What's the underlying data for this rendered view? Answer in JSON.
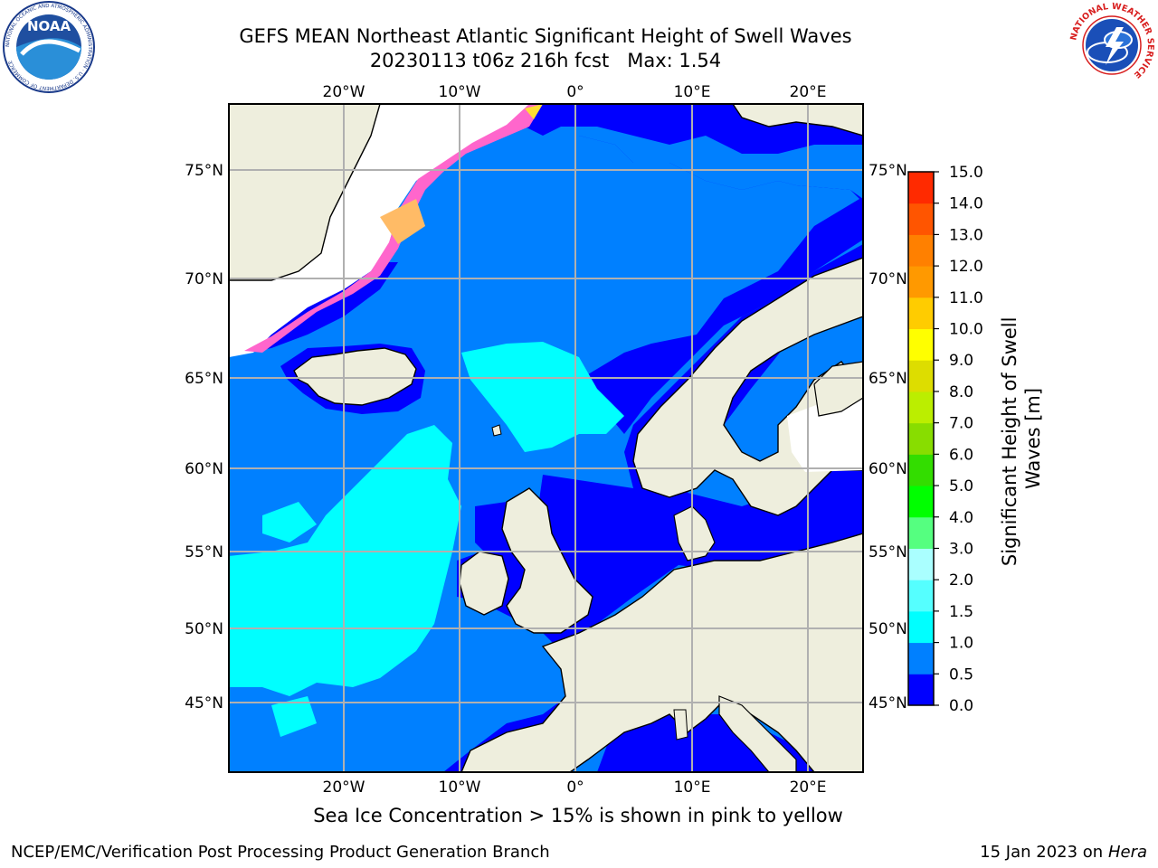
{
  "title": {
    "line1": "GEFS MEAN Northeast Atlantic Significant Height of Swell Waves",
    "line2": "20230113 t06z 216h fcst   Max: 1.54"
  },
  "map": {
    "projection_extent": {
      "lon": [
        -30,
        25
      ],
      "lat": [
        40,
        79
      ]
    },
    "lon_ticks": [
      {
        "value": -20,
        "label": "20°W"
      },
      {
        "value": -10,
        "label": "10°W"
      },
      {
        "value": 0,
        "label": "0°"
      },
      {
        "value": 10,
        "label": "10°E"
      },
      {
        "value": 20,
        "label": "20°E"
      }
    ],
    "lat_ticks": [
      {
        "value": 75,
        "label": "75°N"
      },
      {
        "value": 70,
        "label": "70°N"
      },
      {
        "value": 65,
        "label": "65°N"
      },
      {
        "value": 60,
        "label": "60°N"
      },
      {
        "value": 55,
        "label": "55°N"
      },
      {
        "value": 50,
        "label": "50°N"
      },
      {
        "value": 45,
        "label": "45°N"
      }
    ],
    "colors": {
      "ocean_0_05": "#0000ff",
      "ocean_05_1": "#0080ff",
      "ocean_1_15": "#00ffff",
      "land": "#eeeedd",
      "ice": "#ffffff",
      "ice_edge_pink": "#ff66cc",
      "ice_edge_yellow": "#ffdd33",
      "grid": "#b0b0b0"
    }
  },
  "colorbar": {
    "label": "Significant Height of Swell Waves [m]",
    "levels": [
      "0.0",
      "0.5",
      "1.0",
      "1.5",
      "2.0",
      "3.0",
      "4.0",
      "5.0",
      "6.0",
      "7.0",
      "8.0",
      "9.0",
      "10.0",
      "11.0",
      "12.0",
      "13.0",
      "14.0",
      "15.0"
    ],
    "colors": [
      "#0000ff",
      "#0080ff",
      "#00ffff",
      "#55ffff",
      "#aaffff",
      "#55ff80",
      "#00ff00",
      "#33dd00",
      "#88dd00",
      "#bbee00",
      "#dddd00",
      "#ffff00",
      "#ffcc00",
      "#ff9900",
      "#ff8000",
      "#ff5500",
      "#ff2a00"
    ]
  },
  "ice_note": "Sea Ice Concentration > 15% is shown in pink to yellow",
  "footer": {
    "left": "NCEP/EMC/Verification Post Processing Product Generation Branch",
    "right_prefix": "15 Jan 2023 on ",
    "right_machine": "Hera"
  },
  "logos": {
    "noaa_text": "NOAA",
    "noaa_ring": "NATIONAL OCEANIC AND ATMOSPHERIC ADMINISTRATION · U.S. DEPARTMENT OF COMMERCE",
    "nws_ring": "NATIONAL WEATHER SERVICE"
  }
}
